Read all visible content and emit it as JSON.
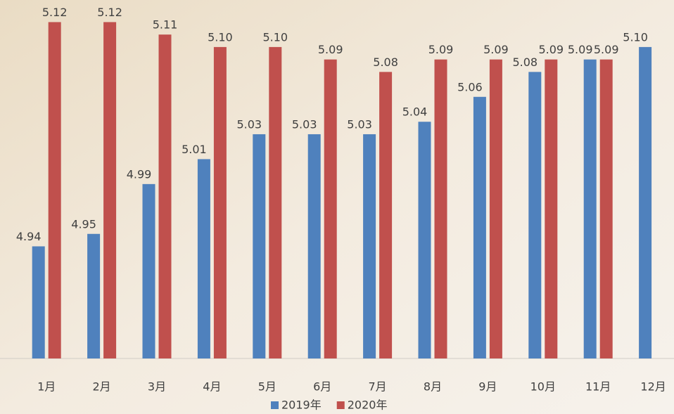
{
  "chart_data": {
    "type": "bar",
    "categories": [
      "1月",
      "2月",
      "3月",
      "4月",
      "5月",
      "6月",
      "7月",
      "8月",
      "9月",
      "10月",
      "11月",
      "12月"
    ],
    "series": [
      {
        "name": "2019年",
        "color": "#4f81bd",
        "values": [
          4.94,
          4.95,
          4.99,
          5.01,
          5.03,
          5.03,
          5.03,
          5.04,
          5.06,
          5.08,
          5.09,
          5.1
        ],
        "value_labels": [
          "4.94",
          "4.95",
          "4.99",
          "5.01",
          "5.03",
          "5.03",
          "5.03",
          "5.04",
          "5.06",
          "5.08",
          "5.09",
          "5.10"
        ]
      },
      {
        "name": "2020年",
        "color": "#c0504d",
        "values": [
          5.12,
          5.12,
          5.11,
          5.1,
          5.1,
          5.09,
          5.08,
          5.09,
          5.09,
          5.09,
          5.09,
          null
        ],
        "value_labels": [
          "5.12",
          "5.12",
          "5.11",
          "5.10",
          "5.10",
          "5.09",
          "5.08",
          "5.09",
          "5.09",
          "5.09",
          "5.09",
          null
        ]
      }
    ],
    "ylim": [
      4.85,
      5.14
    ],
    "legend": "bottom"
  }
}
